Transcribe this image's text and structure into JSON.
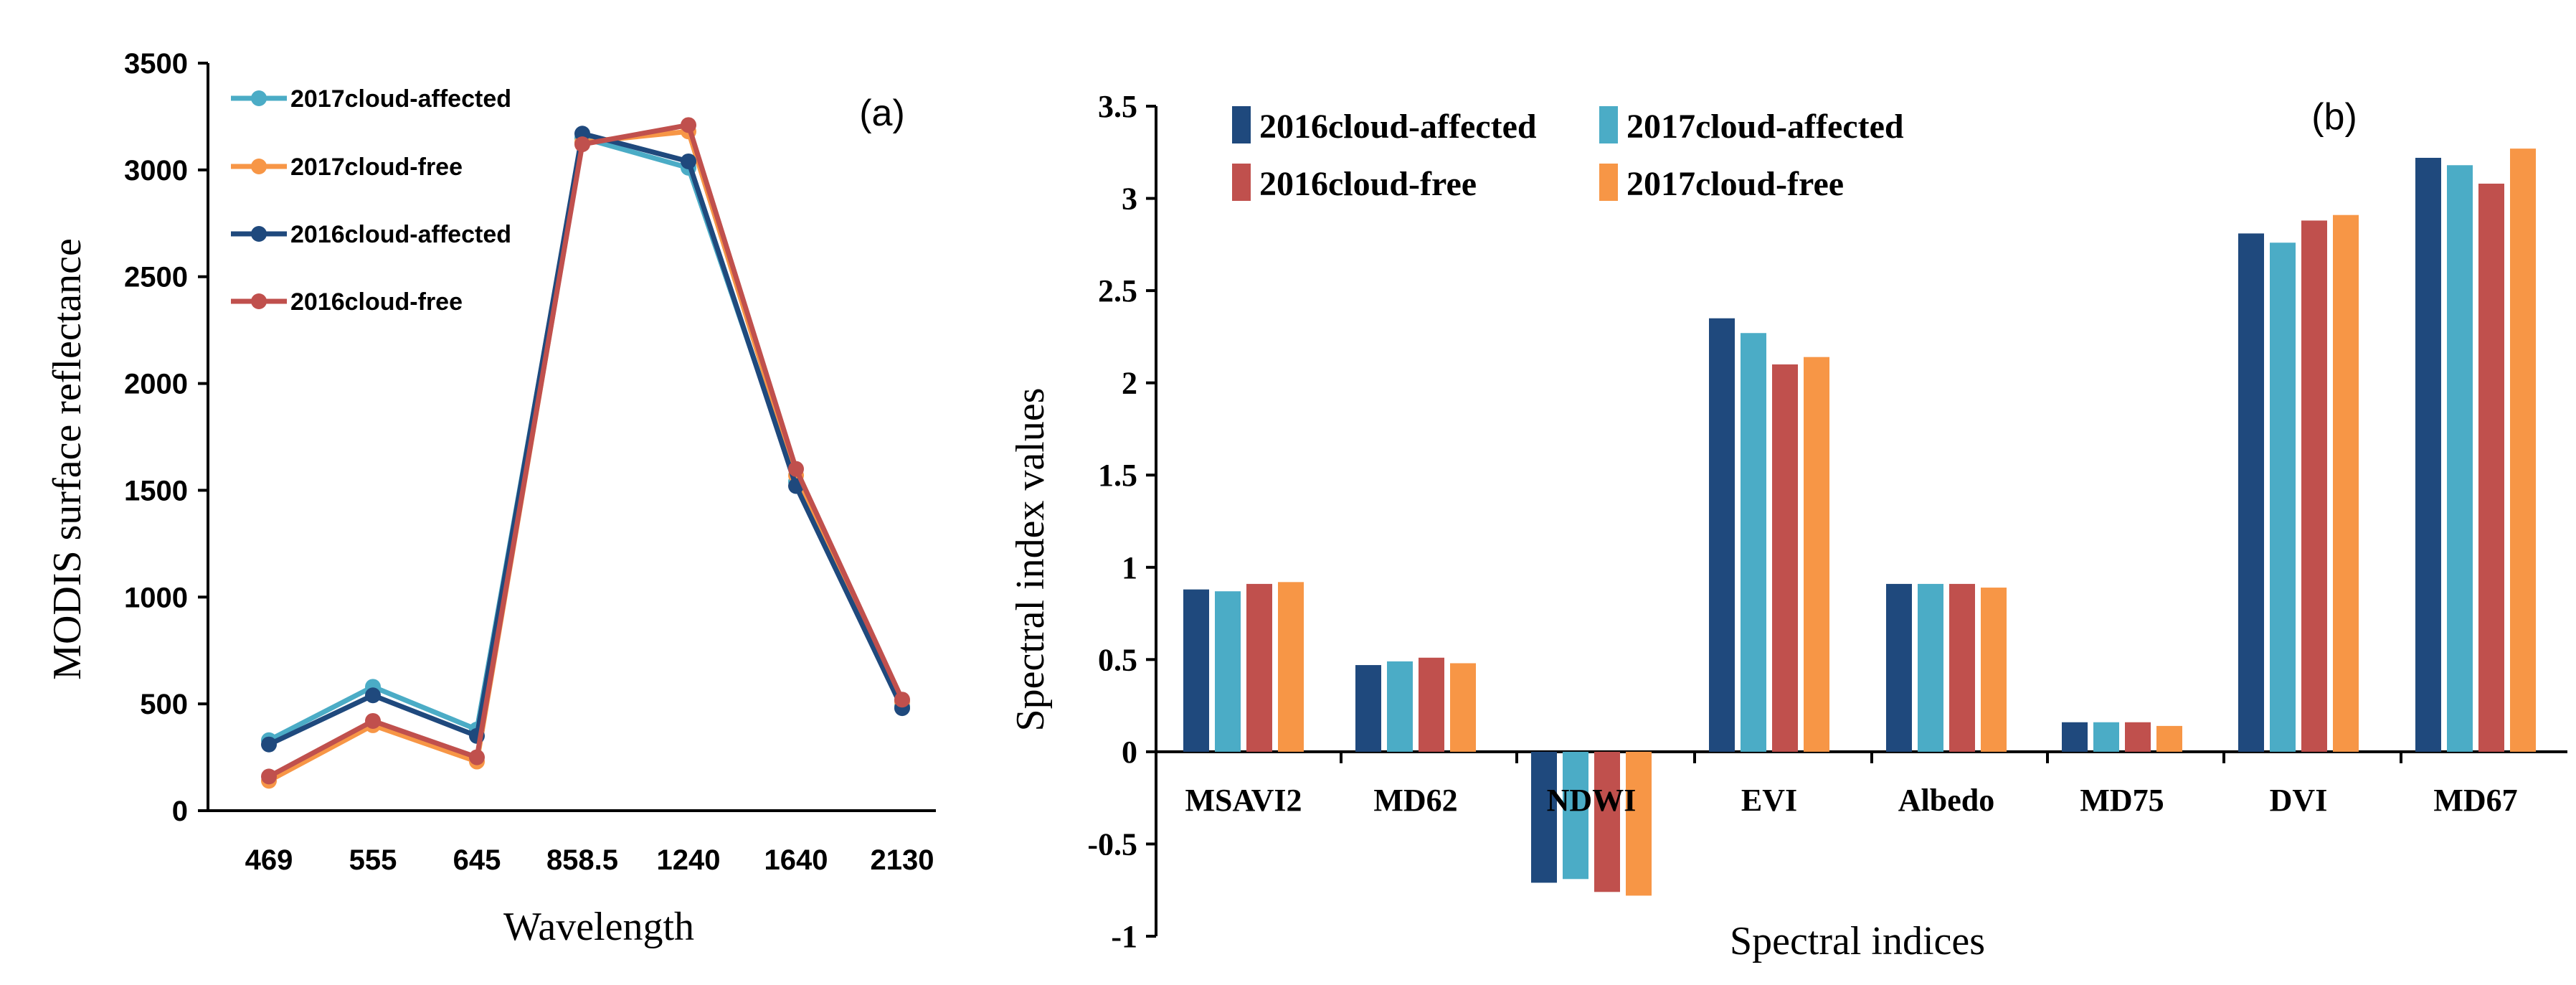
{
  "chart_data": [
    {
      "type": "line",
      "panel_label": "(a)",
      "title": "",
      "xlabel": "Wavelength",
      "ylabel": "MODIS surface reflectance",
      "ylim": [
        0,
        3500
      ],
      "yticks": [
        0,
        500,
        1000,
        1500,
        2000,
        2500,
        3000,
        3500
      ],
      "categories": [
        "469",
        "555",
        "645",
        "858.5",
        "1240",
        "1640",
        "2130"
      ],
      "legend_position": "top-left",
      "series": [
        {
          "name": "2017cloud-affected",
          "color": "#4BACC6",
          "values": [
            330,
            580,
            380,
            3150,
            3010,
            1540,
            490
          ]
        },
        {
          "name": "2017cloud-free",
          "color": "#F79646",
          "values": [
            140,
            400,
            230,
            3130,
            3180,
            1570,
            510
          ]
        },
        {
          "name": "2016cloud-affected",
          "color": "#1F497D",
          "values": [
            310,
            540,
            350,
            3170,
            3040,
            1520,
            480
          ]
        },
        {
          "name": "2016cloud-free",
          "color": "#C0504D",
          "values": [
            160,
            420,
            250,
            3120,
            3210,
            1600,
            520
          ]
        }
      ]
    },
    {
      "type": "bar",
      "panel_label": "(b)",
      "title": "",
      "xlabel": "Spectral indices",
      "ylabel": "Spectral index values",
      "ylim": [
        -1,
        3.5
      ],
      "yticks": [
        "-1",
        "-0.5",
        "0",
        "0.5",
        "1",
        "1.5",
        "2",
        "2.5",
        "3",
        "3.5"
      ],
      "categories": [
        "MSAVI2",
        "MD62",
        "NDWI",
        "EVI",
        "Albedo",
        "MD75",
        "DVI",
        "MD67"
      ],
      "legend_position": "top",
      "series": [
        {
          "name": "2016cloud-affected",
          "color": "#1F497D",
          "values": [
            0.88,
            0.47,
            -0.71,
            2.35,
            0.91,
            0.16,
            2.81,
            3.22
          ]
        },
        {
          "name": "2017cloud-affected",
          "color": "#4BACC6",
          "values": [
            0.87,
            0.49,
            -0.69,
            2.27,
            0.91,
            0.16,
            2.76,
            3.18
          ]
        },
        {
          "name": "2016cloud-free",
          "color": "#C0504D",
          "values": [
            0.91,
            0.51,
            -0.76,
            2.1,
            0.91,
            0.16,
            2.88,
            3.08
          ]
        },
        {
          "name": "2017cloud-free",
          "color": "#F79646",
          "values": [
            0.92,
            0.48,
            -0.78,
            2.14,
            0.89,
            0.14,
            2.91,
            3.27
          ]
        }
      ]
    }
  ]
}
